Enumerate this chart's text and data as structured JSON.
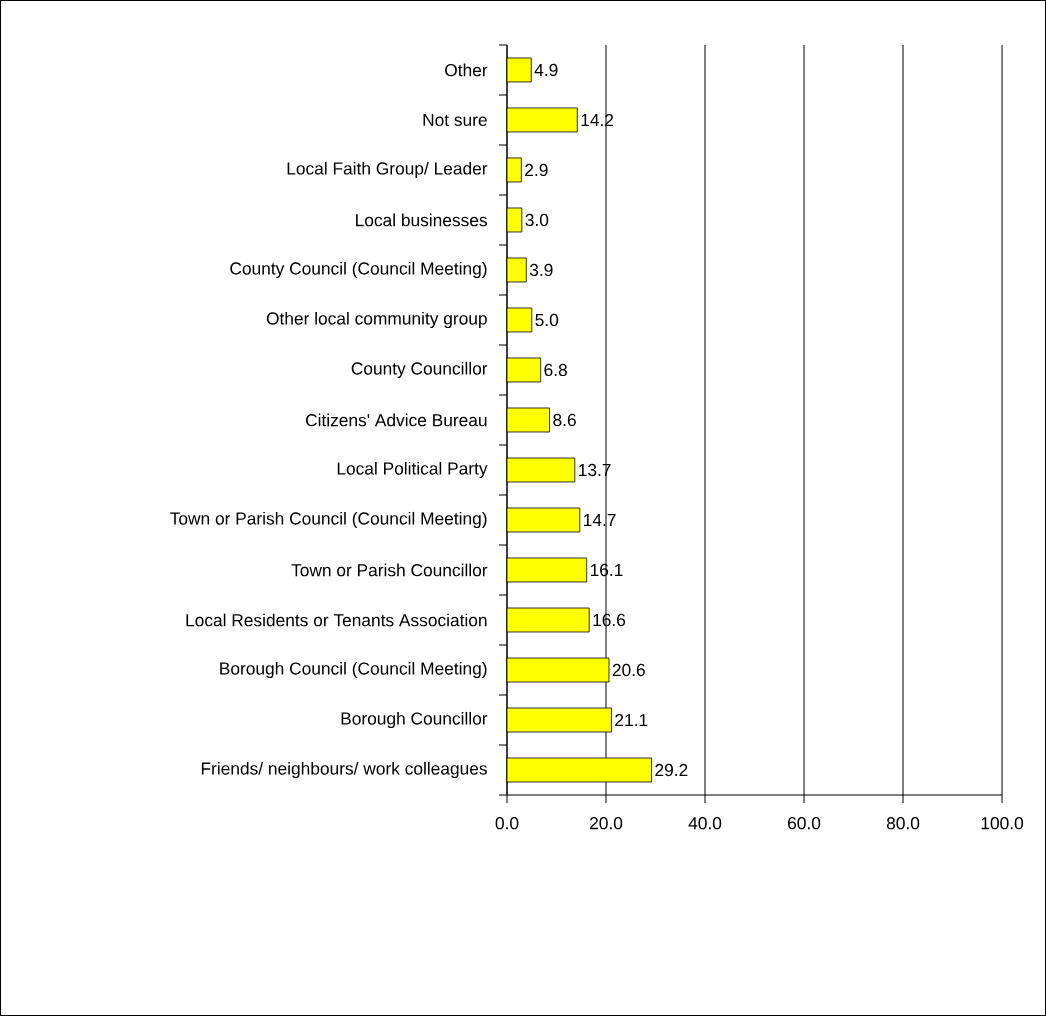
{
  "chart_data": {
    "type": "bar",
    "orientation": "horizontal",
    "categories": [
      "Other",
      "Not sure",
      "Local Faith Group/ Leader",
      "Local businesses",
      "County Council (Council Meeting)",
      "Other local community group",
      "County Councillor",
      "Citizens' Advice Bureau",
      "Local Political Party",
      "Town or Parish Council (Council Meeting)",
      "Town or Parish Councillor",
      "Local Residents or Tenants Association",
      "Borough Council (Council Meeting)",
      "Borough Councillor",
      "Friends/ neighbours/ work colleagues"
    ],
    "values": [
      4.9,
      14.2,
      2.9,
      3.0,
      3.9,
      5.0,
      6.8,
      8.6,
      13.7,
      14.7,
      16.1,
      16.6,
      20.6,
      21.1,
      29.2
    ],
    "value_labels": [
      "4.9",
      "14.2",
      "2.9",
      "3.0",
      "3.9",
      "5.0",
      "6.8",
      "8.6",
      "13.7",
      "14.7",
      "16.1",
      "16.6",
      "20.6",
      "21.1",
      "29.2"
    ],
    "color": "#ffff00",
    "xlim": [
      0,
      100
    ],
    "xticks": [
      {
        "value": 0,
        "label": "0.0"
      },
      {
        "value": 20,
        "label": "20.0"
      },
      {
        "value": 40,
        "label": "40.0"
      },
      {
        "value": 60,
        "label": "60.0"
      },
      {
        "value": 80,
        "label": "80.0"
      },
      {
        "value": 100,
        "label": "100.0"
      }
    ],
    "grid": "x"
  }
}
